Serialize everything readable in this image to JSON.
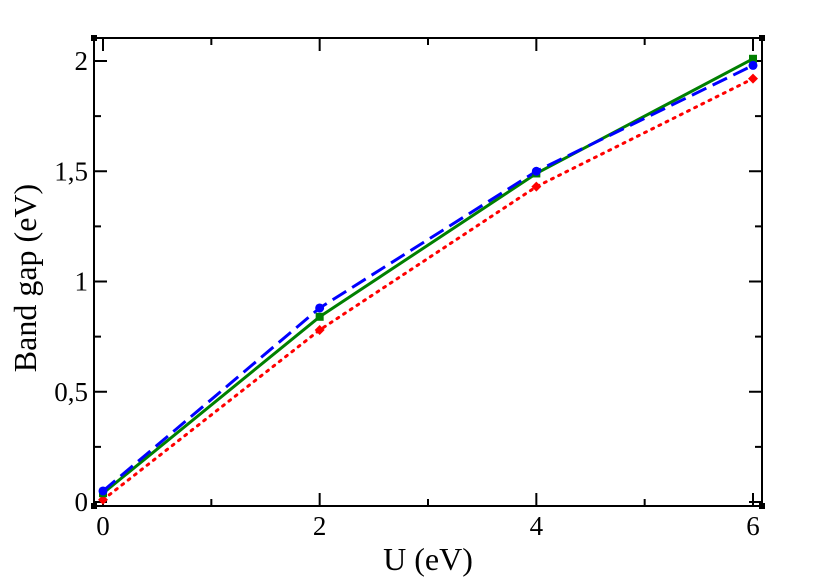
{
  "chart_data": {
    "type": "line",
    "title": "",
    "xlabel": "U (eV)",
    "ylabel": "Band gap (eV)",
    "xlim": [
      0,
      6
    ],
    "ylim": [
      0,
      2
    ],
    "x_ticks": [
      0,
      2,
      4,
      6
    ],
    "x_tick_labels": [
      "0",
      "2",
      "4",
      "6"
    ],
    "y_ticks": [
      0,
      0.5,
      1,
      1.5,
      2
    ],
    "y_tick_labels": [
      "0",
      "0,5",
      "1",
      "1,5",
      "2"
    ],
    "grid": false,
    "legend": "none",
    "series": [
      {
        "x": [
          0,
          2,
          4,
          6
        ],
        "y": [
          0.01,
          0.78,
          1.43,
          1.92
        ],
        "color": "#ff0000",
        "line_style": "dotted",
        "marker": "diamond"
      },
      {
        "x": [
          0,
          2,
          4,
          6
        ],
        "y": [
          0.04,
          0.84,
          1.49,
          2.01
        ],
        "color": "#008000",
        "line_style": "solid",
        "marker": "square"
      },
      {
        "x": [
          0,
          2,
          4,
          6
        ],
        "y": [
          0.05,
          0.88,
          1.5,
          1.98
        ],
        "color": "#0000ff",
        "line_style": "dashed",
        "marker": "circle"
      }
    ]
  }
}
